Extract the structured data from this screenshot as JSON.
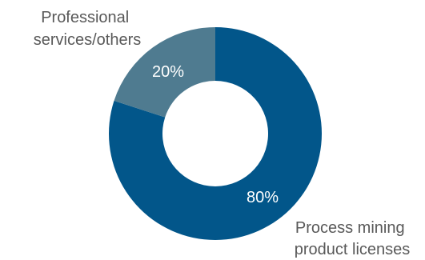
{
  "chart_data": {
    "type": "pie",
    "donut": true,
    "categories": [
      "Process mining product licenses",
      "Professional services/others"
    ],
    "values": [
      80,
      20
    ],
    "unit": "%",
    "data_labels": [
      "80%",
      "20%"
    ],
    "colors": [
      "#02568a",
      "#4f7b90"
    ],
    "category_labels": [
      [
        "Process mining",
        "product licenses"
      ],
      [
        "Professional",
        "services/others"
      ]
    ],
    "legend": "none",
    "start_angle_deg": 0,
    "direction": "clockwise"
  }
}
